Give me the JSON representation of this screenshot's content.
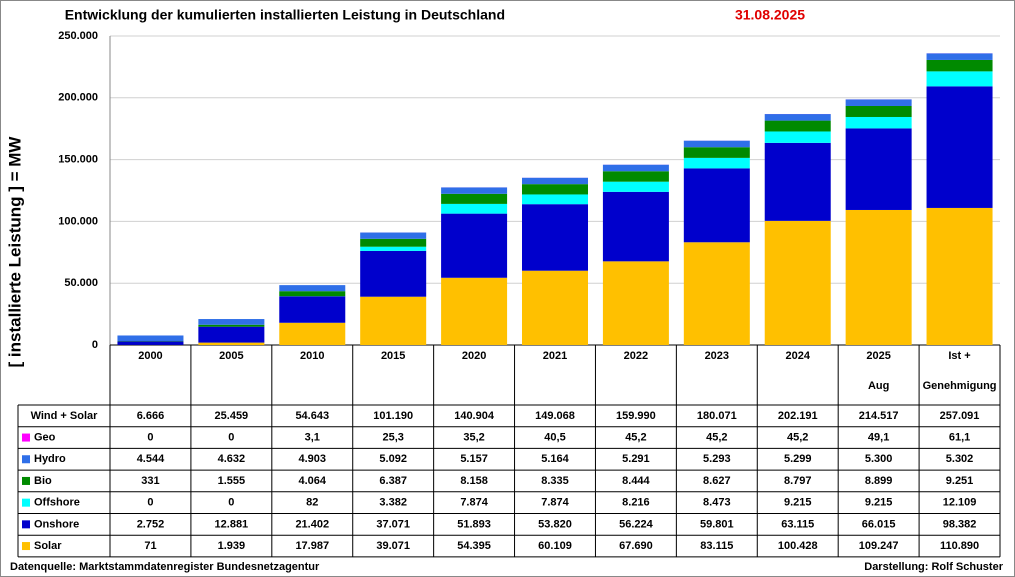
{
  "chart_data": {
    "type": "stacked-bar",
    "title": "Entwicklung der kumulierten installierten Leistung in Deutschland",
    "date": "31.08.2025",
    "ylabel": "[ installierte Leistung ] = MW",
    "source": "Datenquelle: Marktstammdatenregister Bundesnetzagentur",
    "author": "Darstellung:  Rolf Schuster",
    "categories": [
      [
        "2000"
      ],
      [
        "2005"
      ],
      [
        "2010"
      ],
      [
        "2015"
      ],
      [
        "2020"
      ],
      [
        "2021"
      ],
      [
        "2022"
      ],
      [
        "2023"
      ],
      [
        "2024"
      ],
      [
        "2025",
        "Aug"
      ],
      [
        "Ist +",
        "Genehmigung"
      ]
    ],
    "ylim": [
      0,
      250000
    ],
    "yticks": [
      0,
      {
        "value": 50000,
        "label": "50.000"
      },
      {
        "value": 100000,
        "label": "100.000"
      },
      {
        "value": 150000,
        "label": "150.000"
      },
      {
        "value": 200000,
        "label": "200.000"
      },
      {
        "value": 250000,
        "label": "250.000"
      }
    ],
    "totals": {
      "name": "Wind + Solar",
      "values": [
        6666,
        25459,
        54643,
        101190,
        140904,
        149068,
        159990,
        180071,
        202191,
        214517,
        257091
      ],
      "value_labels": [
        "6.666",
        "25.459",
        "54.643",
        "101.190",
        "140.904",
        "149.068",
        "159.990",
        "180.071",
        "202.191",
        "214.517",
        "257.091"
      ]
    },
    "series": [
      {
        "name": "Geo",
        "color": "#ff00ff",
        "values": [
          0,
          0,
          3.1,
          25.3,
          35.2,
          40.5,
          45.2,
          45.2,
          45.2,
          49.1,
          61.1
        ],
        "value_labels": [
          "0",
          "0",
          "3,1",
          "25,3",
          "35,2",
          "40,5",
          "45,2",
          "45,2",
          "45,2",
          "49,1",
          "61,1"
        ]
      },
      {
        "name": "Hydro",
        "color": "#2f6fe8",
        "values": [
          4544,
          4632,
          4903,
          5092,
          5157,
          5164,
          5291,
          5293,
          5299,
          5300,
          5302
        ],
        "value_labels": [
          "4.544",
          "4.632",
          "4.903",
          "5.092",
          "5.157",
          "5.164",
          "5.291",
          "5.293",
          "5.299",
          "5.300",
          "5.302"
        ]
      },
      {
        "name": "Bio",
        "color": "#008a00",
        "values": [
          331,
          1555,
          4064,
          6387,
          8158,
          8335,
          8444,
          8627,
          8797,
          8899,
          9251
        ],
        "value_labels": [
          "331",
          "1.555",
          "4.064",
          "6.387",
          "8.158",
          "8.335",
          "8.444",
          "8.627",
          "8.797",
          "8.899",
          "9.251"
        ]
      },
      {
        "name": "Offshore",
        "color": "#00ffff",
        "values": [
          0,
          0,
          82,
          3382,
          7874,
          7874,
          8216,
          8473,
          9215,
          9215,
          12109
        ],
        "value_labels": [
          "0",
          "0",
          "82",
          "3.382",
          "7.874",
          "7.874",
          "8.216",
          "8.473",
          "9.215",
          "9.215",
          "12.109"
        ]
      },
      {
        "name": "Onshore",
        "color": "#0000cc",
        "values": [
          2752,
          12881,
          21402,
          37071,
          51893,
          53820,
          56224,
          59801,
          63115,
          66015,
          98382
        ],
        "value_labels": [
          "2.752",
          "12.881",
          "21.402",
          "37.071",
          "51.893",
          "53.820",
          "56.224",
          "59.801",
          "63.115",
          "66.015",
          "98.382"
        ]
      },
      {
        "name": "Solar",
        "color": "#ffc000",
        "values": [
          71,
          1939,
          17987,
          39071,
          54395,
          60109,
          67690,
          83115,
          100428,
          109247,
          110890
        ],
        "value_labels": [
          "71",
          "1.939",
          "17.987",
          "39.071",
          "54.395",
          "60.109",
          "67.690",
          "83.115",
          "100.428",
          "109.247",
          "110.890"
        ]
      }
    ],
    "grid": true
  }
}
